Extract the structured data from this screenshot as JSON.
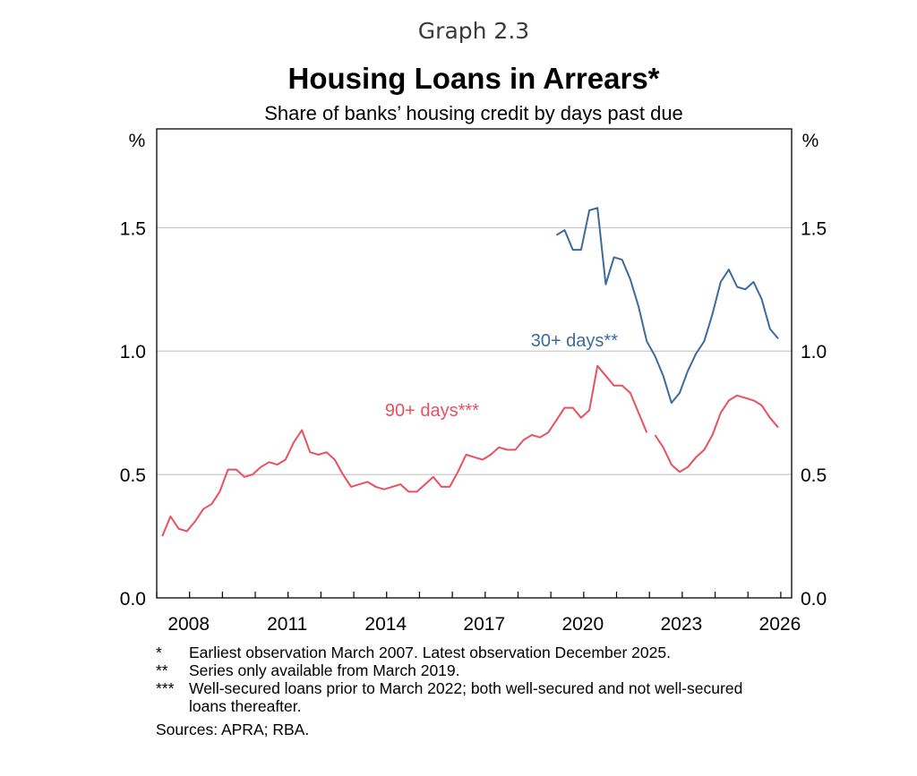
{
  "header": {
    "graph_label": "Graph 2.3",
    "title": "Housing Loans in Arrears*",
    "subtitle": "Share of banks’ housing credit by days past due"
  },
  "chart_data": {
    "type": "line",
    "title": "Housing Loans in Arrears*",
    "subtitle": "Share of banks’ housing credit by days past due",
    "y_unit_left": "%",
    "y_unit_right": "%",
    "ylim": [
      0,
      1.9
    ],
    "xlim": [
      2007.0,
      2026.33
    ],
    "y_ticks": [
      0.0,
      0.5,
      1.0,
      1.5
    ],
    "y_tick_labels": [
      "0.0",
      "0.5",
      "1.0",
      "1.5"
    ],
    "x_ticks": [
      2008,
      2011,
      2014,
      2017,
      2020,
      2023,
      2026
    ],
    "x_tick_labels": [
      "2008",
      "2011",
      "2014",
      "2017",
      "2020",
      "2023",
      "2026"
    ],
    "grid": "horizontal",
    "series": [
      {
        "name": "30+ days**",
        "color": "#3c6a9e",
        "points": [
          [
            2019.17,
            1.47
          ],
          [
            2019.42,
            1.49
          ],
          [
            2019.67,
            1.41
          ],
          [
            2019.92,
            1.41
          ],
          [
            2020.17,
            1.57
          ],
          [
            2020.42,
            1.58
          ],
          [
            2020.67,
            1.27
          ],
          [
            2020.92,
            1.38
          ],
          [
            2021.17,
            1.37
          ],
          [
            2021.42,
            1.29
          ],
          [
            2021.67,
            1.18
          ],
          [
            2021.92,
            1.04
          ],
          [
            2022.17,
            0.98
          ],
          [
            2022.42,
            0.9
          ],
          [
            2022.67,
            0.79
          ],
          [
            2022.92,
            0.83
          ],
          [
            2023.17,
            0.92
          ],
          [
            2023.42,
            0.99
          ],
          [
            2023.67,
            1.04
          ],
          [
            2023.92,
            1.15
          ],
          [
            2024.17,
            1.28
          ],
          [
            2024.42,
            1.33
          ],
          [
            2024.67,
            1.26
          ],
          [
            2024.92,
            1.25
          ],
          [
            2025.17,
            1.28
          ],
          [
            2025.42,
            1.21
          ],
          [
            2025.67,
            1.09
          ],
          [
            2025.92,
            1.05
          ]
        ]
      },
      {
        "name": "90+ days***",
        "color": "#e8515f",
        "segments": [
          [
            [
              2007.17,
              0.25
            ],
            [
              2007.42,
              0.33
            ],
            [
              2007.67,
              0.28
            ],
            [
              2007.92,
              0.27
            ],
            [
              2008.17,
              0.31
            ],
            [
              2008.42,
              0.36
            ],
            [
              2008.67,
              0.38
            ],
            [
              2008.92,
              0.43
            ],
            [
              2009.17,
              0.52
            ],
            [
              2009.42,
              0.52
            ],
            [
              2009.67,
              0.49
            ],
            [
              2009.92,
              0.5
            ],
            [
              2010.17,
              0.53
            ],
            [
              2010.42,
              0.55
            ],
            [
              2010.67,
              0.54
            ],
            [
              2010.92,
              0.56
            ],
            [
              2011.17,
              0.63
            ],
            [
              2011.42,
              0.68
            ],
            [
              2011.67,
              0.59
            ],
            [
              2011.92,
              0.58
            ],
            [
              2012.17,
              0.59
            ],
            [
              2012.42,
              0.56
            ],
            [
              2012.67,
              0.5
            ],
            [
              2012.92,
              0.45
            ],
            [
              2013.17,
              0.46
            ],
            [
              2013.42,
              0.47
            ],
            [
              2013.67,
              0.45
            ],
            [
              2013.92,
              0.44
            ],
            [
              2014.17,
              0.45
            ],
            [
              2014.42,
              0.46
            ],
            [
              2014.67,
              0.43
            ],
            [
              2014.92,
              0.43
            ],
            [
              2015.17,
              0.46
            ],
            [
              2015.42,
              0.49
            ],
            [
              2015.67,
              0.45
            ],
            [
              2015.92,
              0.45
            ],
            [
              2016.17,
              0.51
            ],
            [
              2016.42,
              0.58
            ],
            [
              2016.67,
              0.57
            ],
            [
              2016.92,
              0.56
            ],
            [
              2017.17,
              0.58
            ],
            [
              2017.42,
              0.61
            ],
            [
              2017.67,
              0.6
            ],
            [
              2017.92,
              0.6
            ],
            [
              2018.17,
              0.64
            ],
            [
              2018.42,
              0.66
            ],
            [
              2018.67,
              0.65
            ],
            [
              2018.92,
              0.67
            ],
            [
              2019.17,
              0.72
            ],
            [
              2019.42,
              0.77
            ],
            [
              2019.67,
              0.77
            ],
            [
              2019.92,
              0.73
            ],
            [
              2020.17,
              0.76
            ],
            [
              2020.42,
              0.94
            ],
            [
              2020.67,
              0.9
            ],
            [
              2020.92,
              0.86
            ],
            [
              2021.17,
              0.86
            ],
            [
              2021.42,
              0.83
            ],
            [
              2021.67,
              0.75
            ],
            [
              2021.92,
              0.67
            ]
          ],
          [
            [
              2022.17,
              0.66
            ],
            [
              2022.42,
              0.61
            ],
            [
              2022.67,
              0.54
            ],
            [
              2022.92,
              0.51
            ],
            [
              2023.17,
              0.53
            ],
            [
              2023.42,
              0.57
            ],
            [
              2023.67,
              0.6
            ],
            [
              2023.92,
              0.66
            ],
            [
              2024.17,
              0.75
            ],
            [
              2024.42,
              0.8
            ],
            [
              2024.67,
              0.82
            ],
            [
              2024.92,
              0.81
            ],
            [
              2025.17,
              0.8
            ],
            [
              2025.42,
              0.78
            ],
            [
              2025.67,
              0.73
            ],
            [
              2025.92,
              0.69
            ]
          ]
        ]
      }
    ]
  },
  "footnotes": [
    {
      "mark": "*",
      "text": "Earliest observation March 2007. Latest observation December 2025."
    },
    {
      "mark": "**",
      "text": "Series only available from March 2019."
    },
    {
      "mark": "***",
      "text": "Well-secured loans prior to March 2022; both well-secured and not well-secured loans thereafter."
    }
  ],
  "sources": "Sources:  APRA; RBA."
}
